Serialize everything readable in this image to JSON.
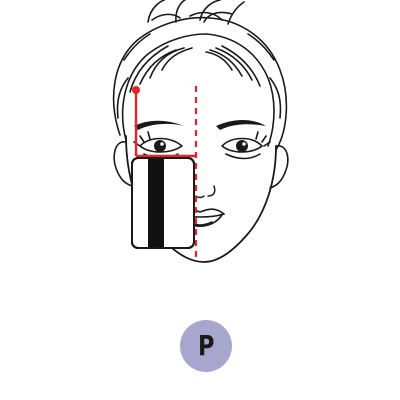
{
  "badge": {
    "letter": "P",
    "bg_color": "#a7a6cc",
    "text_color": "#1a1a1a"
  },
  "diagram": {
    "subject": "face-illustration",
    "guide_color": "#e8222a",
    "card_stripe_color": "#111111",
    "line_color": "#1a1a1a"
  }
}
